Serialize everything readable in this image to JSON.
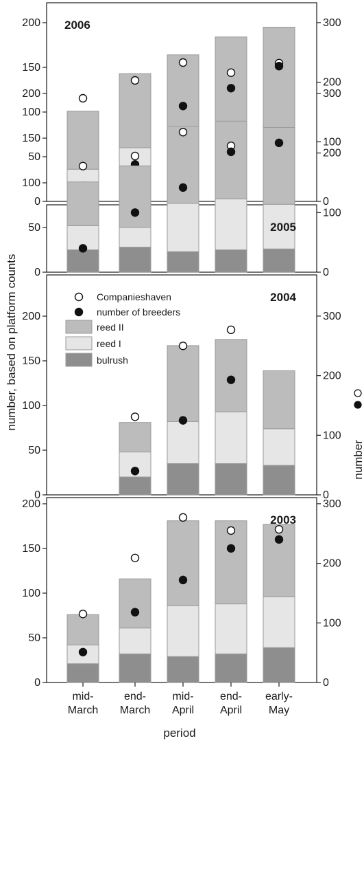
{
  "figure": {
    "y_label_left": "number, based on platform counts",
    "y_label_right": "number",
    "x_label": "period",
    "x_categories": [
      "mid-\nMarch",
      "end-\nMarch",
      "mid-\nApril",
      "end-\nApril",
      "early-\nMay"
    ],
    "left_ticks": [
      0,
      50,
      100,
      150,
      200
    ],
    "right_ticks": [
      0,
      100,
      200,
      300
    ],
    "right_axis_markers": [
      "open-circle",
      "filled-circle"
    ],
    "legend": {
      "placement": "top-left of 2004 panel",
      "items": [
        {
          "label": "Companieshaven",
          "marker": "open-circle"
        },
        {
          "label": "number  of  breeders",
          "marker": "filled-circle"
        },
        {
          "label": "reed II",
          "color": "#bcbcbc"
        },
        {
          "label": "reed I",
          "color": "#e6e6e6"
        },
        {
          "label": "bulrush",
          "color": "#8e8e8e"
        }
      ]
    }
  },
  "colors": {
    "bulrush": "#8e8e8e",
    "reed_i": "#e6e6e6",
    "reed_ii": "#bcbcbc",
    "outline": "#9a9a9a",
    "axis": "#1a1a1a"
  },
  "chart_data": [
    {
      "type": "bar",
      "title": "2006",
      "categories": [
        "mid-March",
        "end-March",
        "mid-April",
        "end-April",
        "early-May"
      ],
      "ylim_left": [
        0,
        220
      ],
      "ylim_right": [
        0,
        330
      ],
      "series": [
        {
          "name": "bulrush",
          "values": [
            17,
            38,
            23,
            35,
            30
          ]
        },
        {
          "name": "reed I",
          "values": [
            19,
            22,
            51,
            48,
            46
          ]
        },
        {
          "name": "reed II",
          "values": [
            65,
            83,
            90,
            101,
            119
          ]
        }
      ],
      "points": [
        {
          "name": "Companieshaven",
          "axis": "right",
          "values": [
            173,
            203,
            233,
            216,
            232
          ]
        },
        {
          "name": "number of breeders",
          "axis": "right",
          "values": [
            26,
            62,
            160,
            190,
            227
          ]
        }
      ]
    },
    {
      "type": "bar",
      "title": "2005",
      "categories": [
        "mid-March",
        "end-March",
        "mid-April",
        "end-April",
        "early-May"
      ],
      "ylim_left": [
        0,
        220
      ],
      "ylim_right": [
        0,
        330
      ],
      "series": [
        {
          "name": "bulrush",
          "values": [
            25,
            28,
            23,
            25,
            26
          ]
        },
        {
          "name": "reed I",
          "values": [
            27,
            22,
            54,
            57,
            50
          ]
        },
        {
          "name": "reed II",
          "values": [
            49,
            69,
            86,
            87,
            86
          ]
        }
      ],
      "points": [
        {
          "name": "Companieshaven",
          "axis": "right",
          "values": [
            178,
            195,
            235,
            212,
            null
          ]
        },
        {
          "name": "number of breeders",
          "axis": "right",
          "values": [
            40,
            100,
            142,
            202,
            217
          ]
        }
      ]
    },
    {
      "type": "bar",
      "title": "2004",
      "categories": [
        "mid-March",
        "end-March",
        "mid-April",
        "end-April",
        "early-May"
      ],
      "ylim_left": [
        0,
        220
      ],
      "ylim_right": [
        0,
        330
      ],
      "series": [
        {
          "name": "bulrush",
          "values": [
            null,
            20,
            35,
            35,
            33
          ]
        },
        {
          "name": "reed I",
          "values": [
            null,
            28,
            47,
            58,
            41
          ]
        },
        {
          "name": "reed II",
          "values": [
            null,
            33,
            85,
            81,
            65
          ]
        }
      ],
      "points": [
        {
          "name": "Companieshaven",
          "axis": "right",
          "values": [
            null,
            131,
            250,
            277,
            null
          ]
        },
        {
          "name": "number of breeders",
          "axis": "right",
          "values": [
            null,
            40,
            125,
            193,
            null
          ]
        }
      ]
    },
    {
      "type": "bar",
      "title": "2003",
      "categories": [
        "mid-March",
        "end-March",
        "mid-April",
        "end-April",
        "early-May"
      ],
      "ylim_left": [
        0,
        220
      ],
      "ylim_right": [
        0,
        330
      ],
      "series": [
        {
          "name": "bulrush",
          "values": [
            21,
            32,
            29,
            32,
            39
          ]
        },
        {
          "name": "reed I",
          "values": [
            21,
            29,
            57,
            56,
            57
          ]
        },
        {
          "name": "reed II",
          "values": [
            34,
            55,
            95,
            93,
            81
          ]
        }
      ],
      "points": [
        {
          "name": "Companieshaven",
          "axis": "right",
          "values": [
            115,
            209,
            277,
            255,
            257
          ]
        },
        {
          "name": "number of breeders",
          "axis": "right",
          "values": [
            51,
            118,
            172,
            225,
            240
          ]
        }
      ]
    }
  ]
}
